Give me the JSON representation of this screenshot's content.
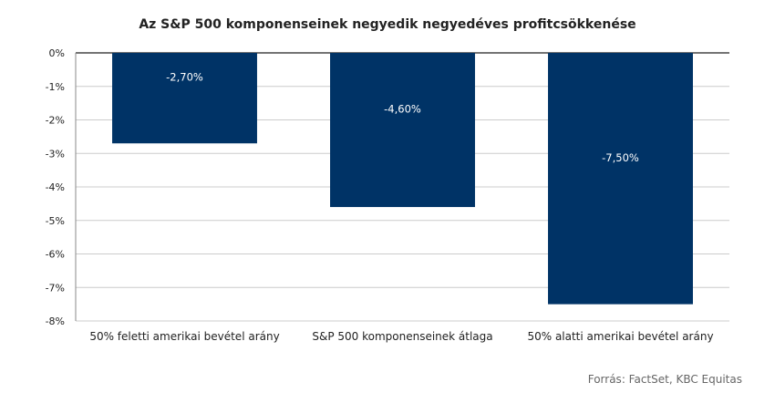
{
  "chart_data": {
    "type": "bar",
    "title": "Az S&P 500 komponenseinek negyedik negyedéves profitcsökkenése",
    "categories": [
      "50% feletti amerikai bevétel arány",
      "S&P 500 komponenseinek átlaga",
      "50% alatti amerikai bevétel arány"
    ],
    "values": [
      -2.7,
      -4.6,
      -7.5
    ],
    "data_labels": [
      "-2,70%",
      "-4,60%",
      "-7,50%"
    ],
    "ylim": [
      -8,
      0
    ],
    "yticks": [
      0,
      -1,
      -2,
      -3,
      -4,
      -5,
      -6,
      -7,
      -8
    ],
    "ytick_labels": [
      "0%",
      "-1%",
      "-2%",
      "-3%",
      "-4%",
      "-5%",
      "-6%",
      "-7%",
      "-8%"
    ],
    "xlabel": "",
    "ylabel": "",
    "grid": true,
    "legend": "none",
    "bar_color": "#003366"
  },
  "source": "Forrás: FactSet, KBC Equitas"
}
